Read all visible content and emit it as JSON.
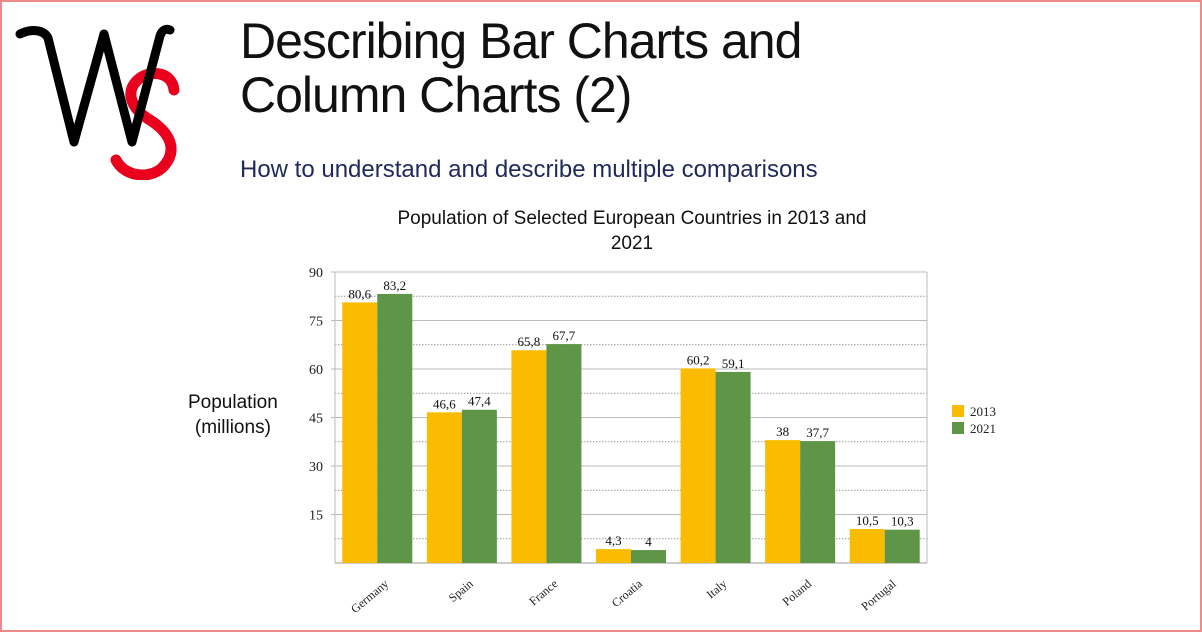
{
  "header": {
    "logo_text": "WS",
    "title_line1": "Describing Bar Charts and",
    "title_line2": "Column Charts (2)",
    "subtitle": "How to understand and describe multiple comparisons"
  },
  "colors": {
    "s2013": "#fbbb00",
    "s2021": "#5e9547",
    "frame": "#f08a8a",
    "subtitle": "#1e2a5a"
  },
  "chart_data": {
    "type": "bar",
    "title": "Population of Selected European Countries in 2013 and 2021",
    "title_line1": "Population of Selected European Countries in 2013 and",
    "title_line2": "2021",
    "ylabel_line1": "Population",
    "ylabel_line2": "(millions)",
    "xlabel": "",
    "ylim": [
      0,
      90
    ],
    "yticks": [
      15,
      30,
      45,
      60,
      75,
      90
    ],
    "grid": true,
    "legend_position": "right",
    "categories": [
      "Germany",
      "Spain",
      "France",
      "Croatia",
      "Italy",
      "Poland",
      "Portugal"
    ],
    "series": [
      {
        "name": "2013",
        "values": [
          80.6,
          46.6,
          65.8,
          4.3,
          60.2,
          38,
          10.5
        ],
        "labels": [
          "80,6",
          "46,6",
          "65,8",
          "4,3",
          "60,2",
          "38",
          "10,5"
        ]
      },
      {
        "name": "2021",
        "values": [
          83.2,
          47.4,
          67.7,
          4,
          59.1,
          37.7,
          10.3
        ],
        "labels": [
          "83,2",
          "47,4",
          "67,7",
          "4",
          "59,1",
          "37,7",
          "10,3"
        ]
      }
    ]
  }
}
